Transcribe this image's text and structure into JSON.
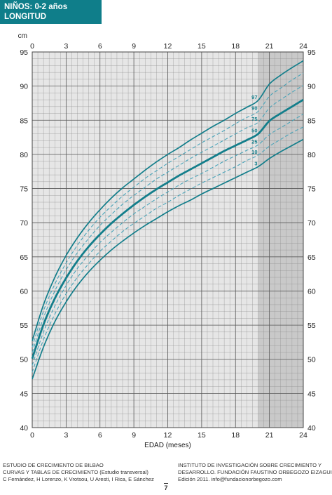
{
  "header": {
    "title_line1": "NIÑOS: 0-2 años",
    "title_line2": "LONGITUD"
  },
  "colors": {
    "accent": "#0f7e8a",
    "grid_bg": "#e6e6e6",
    "grid_bg_dark": "#c9c9c9",
    "grid_line": "#8e8e8e",
    "curve": "#137e8b",
    "dashed": "#4aa3b8"
  },
  "chart_data": {
    "type": "line",
    "title": "NIÑOS: 0-2 años LONGITUD",
    "xlabel": "EDAD (meses)",
    "ylabel": "cm",
    "xlim": [
      0,
      24
    ],
    "ylim": [
      40,
      95
    ],
    "x_ticks": [
      0,
      3,
      6,
      9,
      12,
      15,
      18,
      21,
      24
    ],
    "y_ticks": [
      40,
      45,
      50,
      55,
      60,
      65,
      70,
      75,
      80,
      85,
      90,
      95
    ],
    "grid": true,
    "x": [
      0,
      1,
      2,
      3,
      4,
      5,
      6,
      7,
      8,
      9,
      10,
      11,
      12,
      13,
      14,
      15,
      16,
      17,
      18,
      19,
      20,
      21,
      22,
      23,
      24
    ],
    "series": [
      {
        "name": "3",
        "style": "solid",
        "thickness": "normal",
        "values": [
          47.1,
          51.8,
          55.5,
          58.4,
          60.8,
          62.8,
          64.5,
          66.0,
          67.3,
          68.5,
          69.6,
          70.6,
          71.6,
          72.5,
          73.3,
          74.2,
          75.0,
          75.8,
          76.6,
          77.4,
          78.2,
          79.4,
          80.4,
          81.3,
          82.2
        ]
      },
      {
        "name": "10",
        "style": "dashed",
        "thickness": "normal",
        "values": [
          48.1,
          52.9,
          56.6,
          59.6,
          62.0,
          64.0,
          65.8,
          67.3,
          68.7,
          69.9,
          71.0,
          72.1,
          73.0,
          74.0,
          74.9,
          75.8,
          76.6,
          77.4,
          78.2,
          79.1,
          79.9,
          81.2,
          82.2,
          83.2,
          84.0
        ]
      },
      {
        "name": "25",
        "style": "dashed",
        "thickness": "normal",
        "values": [
          49.1,
          54.0,
          57.8,
          60.8,
          63.3,
          65.3,
          67.1,
          68.6,
          70.0,
          71.3,
          72.4,
          73.5,
          74.5,
          75.5,
          76.4,
          77.2,
          78.1,
          79.0,
          79.8,
          80.6,
          81.4,
          82.9,
          83.9,
          84.9,
          85.9
        ]
      },
      {
        "name": "50",
        "style": "solid",
        "thickness": "bold",
        "values": [
          50.1,
          55.1,
          58.9,
          61.9,
          64.4,
          66.5,
          68.3,
          69.9,
          71.3,
          72.6,
          73.8,
          74.9,
          75.9,
          76.9,
          77.8,
          78.7,
          79.6,
          80.5,
          81.3,
          82.1,
          83.0,
          84.9,
          86.0,
          87.0,
          88.0
        ]
      },
      {
        "name": "75",
        "style": "dashed",
        "thickness": "normal",
        "values": [
          51.0,
          56.1,
          60.0,
          63.1,
          65.6,
          67.7,
          69.6,
          71.2,
          72.7,
          74.0,
          75.2,
          76.4,
          77.4,
          78.4,
          79.4,
          80.3,
          81.2,
          82.1,
          83.0,
          83.9,
          84.7,
          86.8,
          88.0,
          89.1,
          90.1
        ]
      },
      {
        "name": "90",
        "style": "dashed",
        "thickness": "normal",
        "values": [
          51.8,
          57.1,
          61.0,
          64.1,
          66.7,
          68.9,
          70.8,
          72.4,
          73.9,
          75.2,
          76.5,
          77.6,
          78.7,
          79.7,
          80.7,
          81.7,
          82.6,
          83.5,
          84.5,
          85.4,
          86.3,
          88.5,
          89.7,
          90.9,
          91.9
        ]
      },
      {
        "name": "97",
        "style": "solid",
        "thickness": "normal",
        "values": [
          52.7,
          58.0,
          62.0,
          65.2,
          67.8,
          70.0,
          71.9,
          73.6,
          75.1,
          76.4,
          77.7,
          78.9,
          80.0,
          81.0,
          82.1,
          83.1,
          84.1,
          85.0,
          86.0,
          86.9,
          87.9,
          90.3,
          91.6,
          92.7,
          93.7
        ]
      }
    ]
  },
  "footer": {
    "left_line1": "ESTUDIO DE CRECIMIENTO DE BILBAO",
    "left_line2": "CURVAS Y TABLAS DE CRECIMIENTO (Estudio transversal)",
    "left_line3": "C Fernández, H Lorenzo, K Vrotsou, U Aresti, I Rica, E Sánchez",
    "right_line1": "INSTITUTO DE INVESTIGACIÓN SOBRE CRECIMIENTO Y",
    "right_line2": "DESARROLLO. FUNDACIÓN FAUSTINO ORBEGOZO EIZAGUIRRE",
    "right_line3": "Edición 2011. info@fundacionorbegozo.com",
    "page_number": "7"
  }
}
